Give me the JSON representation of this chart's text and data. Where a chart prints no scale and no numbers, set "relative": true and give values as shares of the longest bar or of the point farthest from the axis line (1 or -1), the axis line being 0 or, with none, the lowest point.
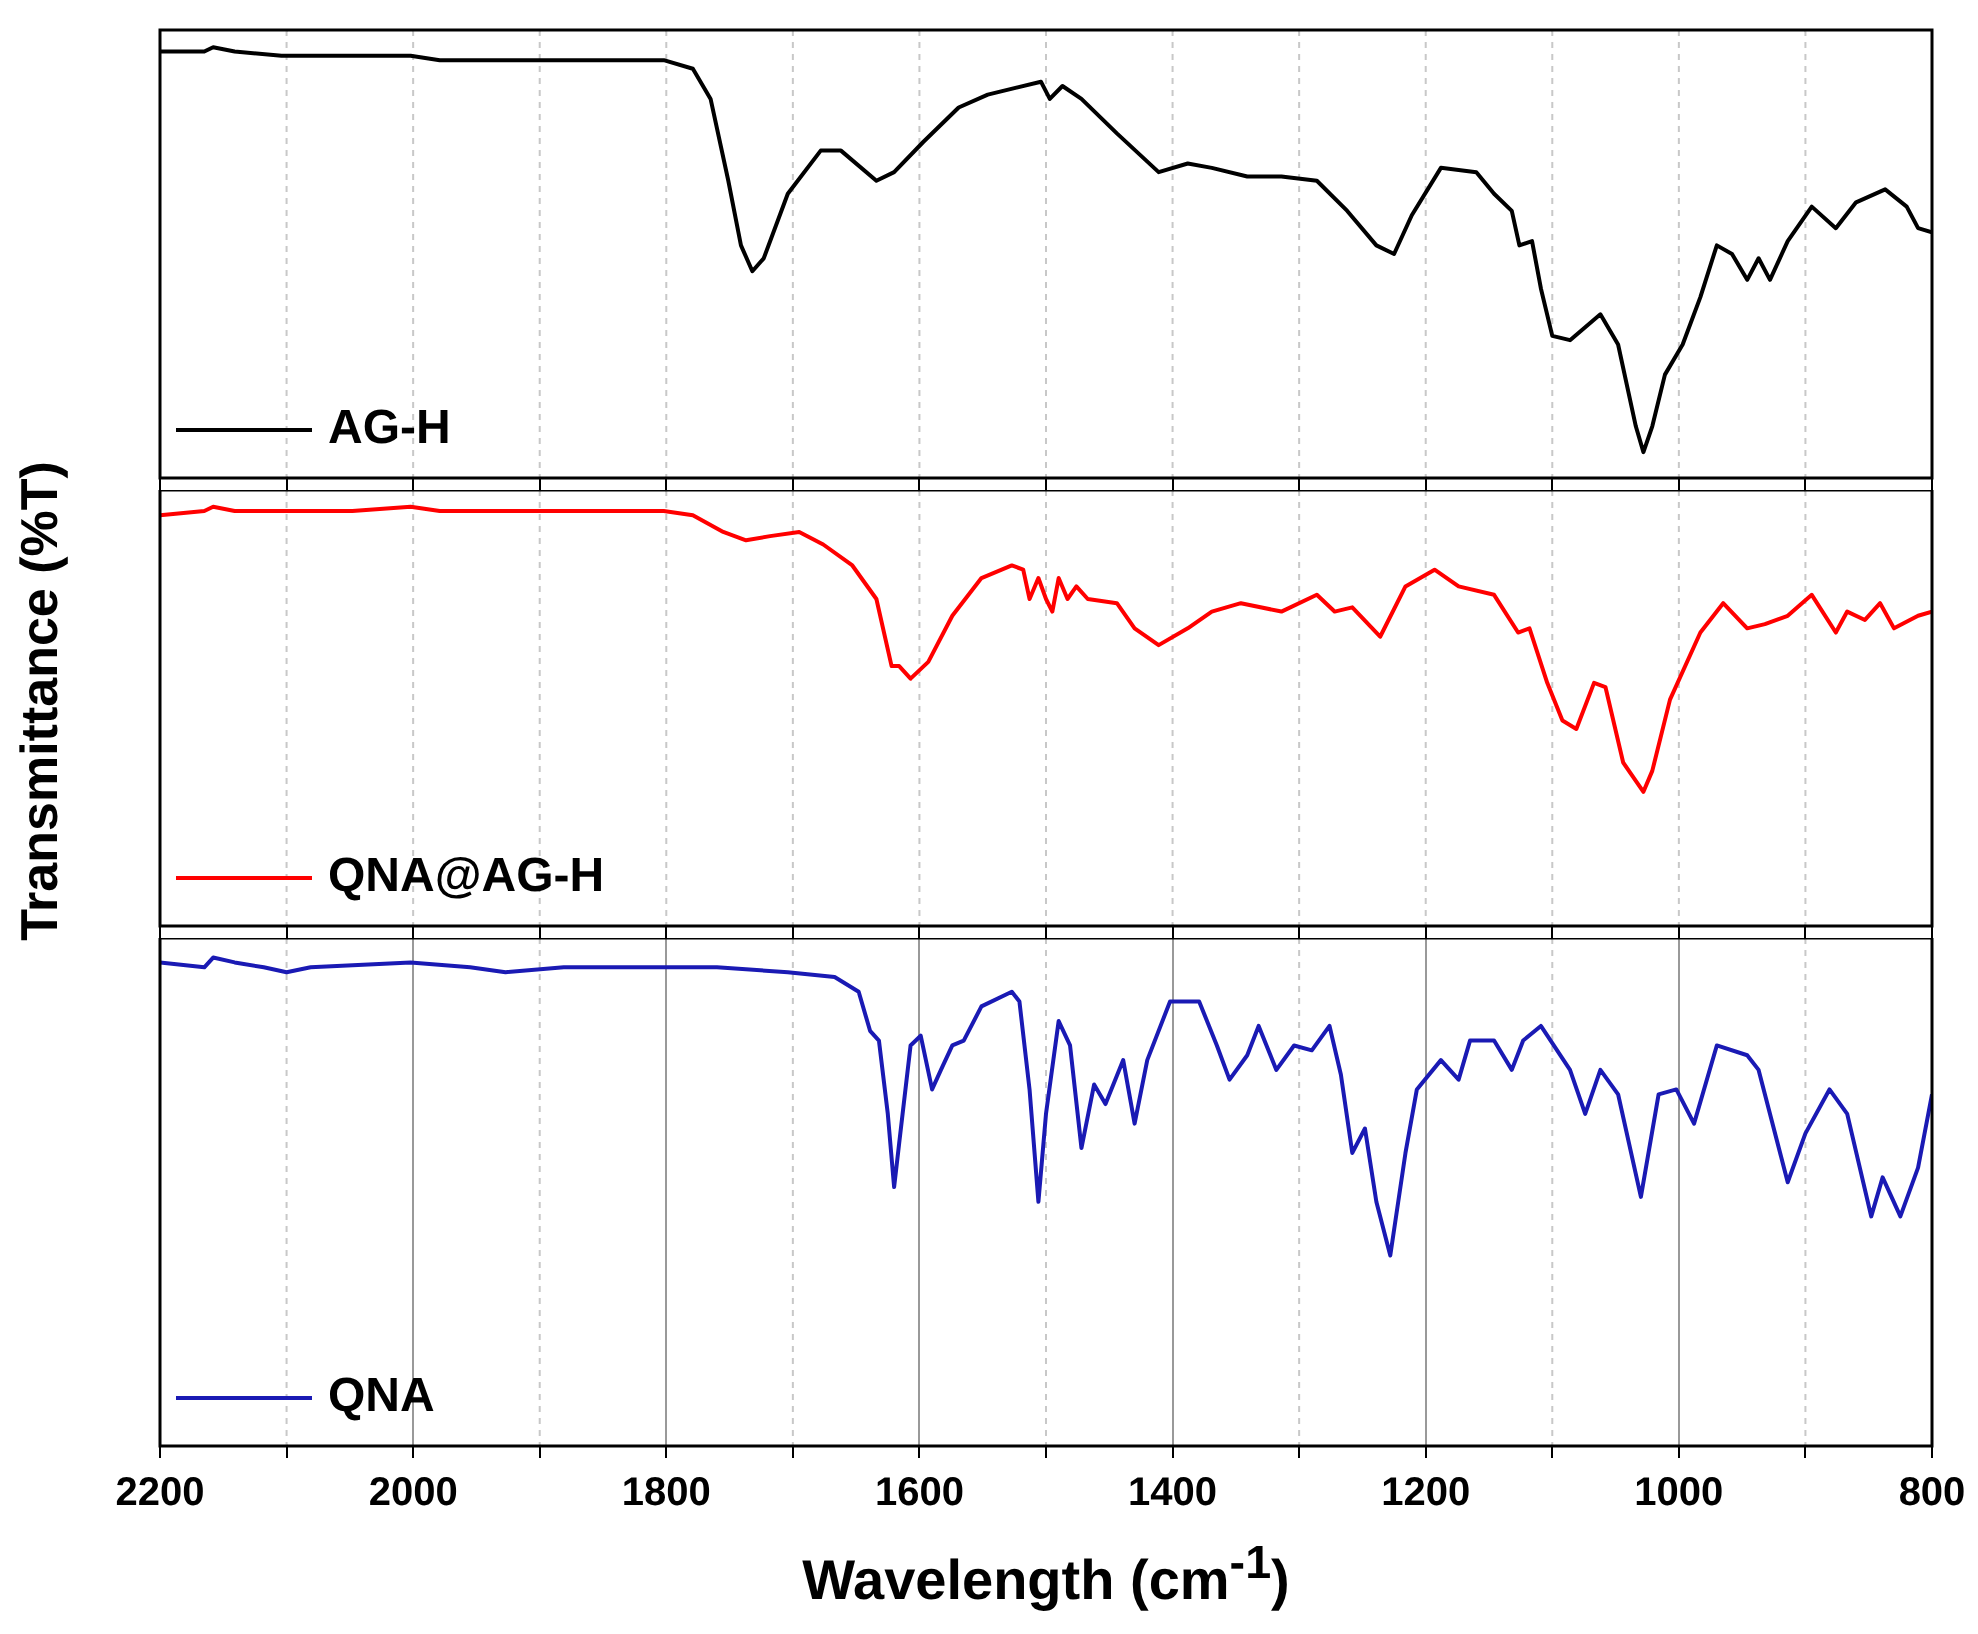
{
  "chart_data": [
    {
      "type": "line",
      "relative": true,
      "xlim": [
        2200,
        800
      ],
      "xticks": [
        {
          "value": 2200,
          "label": null
        },
        {
          "value": 2100,
          "label": null
        },
        {
          "value": 2000,
          "label": null
        },
        {
          "value": 1900,
          "label": null
        },
        {
          "value": 1800,
          "label": null
        },
        {
          "value": 1700,
          "label": null
        },
        {
          "value": 1600,
          "label": null
        },
        {
          "value": 1500,
          "label": null
        },
        {
          "value": 1400,
          "label": null
        },
        {
          "value": 1300,
          "label": null
        },
        {
          "value": 1200,
          "label": null
        },
        {
          "value": 1100,
          "label": null
        },
        {
          "value": 1000,
          "label": null
        },
        {
          "value": 900,
          "label": null
        },
        {
          "value": 800,
          "label": null
        }
      ],
      "tick_labels": false,
      "grid": "x",
      "legend": "bottom left",
      "x": [
        2200,
        2165,
        2158,
        2141,
        2104,
        2002,
        1979,
        1937,
        1862,
        1802,
        1779,
        1765,
        1751,
        1741,
        1732,
        1723,
        1704,
        1678,
        1662,
        1634,
        1620,
        1597,
        1569,
        1546,
        1504,
        1497,
        1487,
        1472,
        1444,
        1411,
        1388,
        1369,
        1341,
        1314,
        1286,
        1262,
        1239,
        1225,
        1211,
        1188,
        1160,
        1146,
        1132,
        1126,
        1116,
        1109,
        1100,
        1086,
        1062,
        1048,
        1034,
        1028,
        1021,
        1011,
        997,
        983,
        970,
        958,
        946,
        937,
        928,
        914,
        895,
        876,
        860,
        837,
        820,
        811,
        800
      ],
      "series": [
        {
          "name": "AG-H",
          "color": "#000000",
          "values": [
            0.99,
            0.99,
            1.0,
            0.99,
            0.98,
            0.98,
            0.97,
            0.97,
            0.97,
            0.97,
            0.95,
            0.88,
            0.69,
            0.54,
            0.48,
            0.51,
            0.66,
            0.76,
            0.76,
            0.69,
            0.71,
            0.78,
            0.86,
            0.89,
            0.92,
            0.88,
            0.91,
            0.88,
            0.8,
            0.71,
            0.73,
            0.72,
            0.7,
            0.7,
            0.69,
            0.62,
            0.54,
            0.52,
            0.61,
            0.72,
            0.71,
            0.66,
            0.62,
            0.54,
            0.55,
            0.44,
            0.33,
            0.32,
            0.38,
            0.31,
            0.12,
            0.06,
            0.12,
            0.24,
            0.31,
            0.42,
            0.54,
            0.52,
            0.46,
            0.51,
            0.46,
            0.55,
            0.63,
            0.58,
            0.64,
            0.67,
            0.63,
            0.58,
            0.57
          ]
        }
      ]
    },
    {
      "type": "line",
      "relative": true,
      "ylabel": "Transmittance (%T)",
      "xlim": [
        2200,
        800
      ],
      "xticks": [
        {
          "value": 2200,
          "label": null
        },
        {
          "value": 2100,
          "label": null
        },
        {
          "value": 2000,
          "label": null
        },
        {
          "value": 1900,
          "label": null
        },
        {
          "value": 1800,
          "label": null
        },
        {
          "value": 1700,
          "label": null
        },
        {
          "value": 1600,
          "label": null
        },
        {
          "value": 1500,
          "label": null
        },
        {
          "value": 1400,
          "label": null
        },
        {
          "value": 1300,
          "label": null
        },
        {
          "value": 1200,
          "label": null
        },
        {
          "value": 1100,
          "label": null
        },
        {
          "value": 1000,
          "label": null
        },
        {
          "value": 900,
          "label": null
        },
        {
          "value": 800,
          "label": null
        }
      ],
      "tick_labels": false,
      "grid": "x",
      "legend": "bottom left",
      "x": [
        2200,
        2165,
        2158,
        2141,
        2104,
        2048,
        2002,
        1979,
        1937,
        1862,
        1802,
        1779,
        1755,
        1737,
        1718,
        1695,
        1676,
        1653,
        1634,
        1622,
        1616,
        1607,
        1593,
        1574,
        1551,
        1527,
        1518,
        1513,
        1506,
        1500,
        1495,
        1490,
        1483,
        1476,
        1467,
        1444,
        1430,
        1411,
        1388,
        1369,
        1346,
        1314,
        1286,
        1272,
        1258,
        1236,
        1216,
        1193,
        1174,
        1146,
        1127,
        1118,
        1104,
        1092,
        1081,
        1067,
        1058,
        1044,
        1028,
        1021,
        1007,
        983,
        965,
        946,
        932,
        914,
        895,
        876,
        867,
        853,
        841,
        830,
        811,
        800
      ],
      "series": [
        {
          "name": "QNA@AG-H",
          "color": "#ff0000",
          "values": [
            0.98,
            0.99,
            1.0,
            0.99,
            0.99,
            0.99,
            1.0,
            0.99,
            0.99,
            0.99,
            0.99,
            0.98,
            0.94,
            0.92,
            0.93,
            0.94,
            0.91,
            0.86,
            0.78,
            0.62,
            0.62,
            0.59,
            0.63,
            0.74,
            0.83,
            0.86,
            0.85,
            0.78,
            0.83,
            0.78,
            0.75,
            0.83,
            0.78,
            0.81,
            0.78,
            0.77,
            0.71,
            0.67,
            0.71,
            0.75,
            0.77,
            0.75,
            0.79,
            0.75,
            0.76,
            0.69,
            0.81,
            0.85,
            0.81,
            0.79,
            0.7,
            0.71,
            0.58,
            0.49,
            0.47,
            0.58,
            0.57,
            0.39,
            0.32,
            0.37,
            0.54,
            0.7,
            0.77,
            0.71,
            0.72,
            0.74,
            0.79,
            0.7,
            0.75,
            0.73,
            0.77,
            0.71,
            0.74,
            0.75
          ]
        }
      ]
    },
    {
      "type": "line",
      "relative": true,
      "xlabel": "Wavelength (cm$^{-1}$)",
      "xlim": [
        2200,
        800
      ],
      "xticks": [
        2200,
        {
          "value": 2100,
          "label": null
        },
        2000,
        {
          "value": 1900,
          "label": null
        },
        1800,
        {
          "value": 1700,
          "label": null
        },
        1600,
        {
          "value": 1500,
          "label": null
        },
        1400,
        {
          "value": 1300,
          "label": null
        },
        1200,
        {
          "value": 1100,
          "label": null
        },
        1000,
        {
          "value": 900,
          "label": null
        },
        800
      ],
      "tick_labels": "x",
      "grid": "x",
      "legend": "bottom left",
      "x": [
        2200,
        2165,
        2158,
        2141,
        2118,
        2100,
        2081,
        2002,
        1955,
        1927,
        1881,
        1802,
        1760,
        1704,
        1667,
        1648,
        1639,
        1632,
        1625,
        1620,
        1616,
        1607,
        1599,
        1590,
        1583,
        1574,
        1565,
        1551,
        1527,
        1521,
        1513,
        1506,
        1500,
        1490,
        1481,
        1472,
        1462,
        1453,
        1439,
        1430,
        1420,
        1402,
        1379,
        1365,
        1355,
        1341,
        1332,
        1318,
        1304,
        1290,
        1276,
        1267,
        1258,
        1248,
        1239,
        1228,
        1216,
        1207,
        1188,
        1174,
        1165,
        1146,
        1132,
        1123,
        1109,
        1086,
        1074,
        1062,
        1048,
        1030,
        1016,
        1002,
        988,
        970,
        946,
        937,
        914,
        900,
        881,
        867,
        848,
        839,
        825,
        811,
        800
      ],
      "series": [
        {
          "name": "QNA",
          "color": "#1a1ab4",
          "values": [
            0.99,
            0.98,
            1.0,
            0.99,
            0.98,
            0.97,
            0.98,
            0.99,
            0.98,
            0.97,
            0.98,
            0.98,
            0.98,
            0.97,
            0.96,
            0.93,
            0.85,
            0.83,
            0.68,
            0.53,
            0.62,
            0.82,
            0.84,
            0.73,
            0.77,
            0.82,
            0.83,
            0.9,
            0.93,
            0.91,
            0.73,
            0.5,
            0.68,
            0.87,
            0.82,
            0.61,
            0.74,
            0.7,
            0.79,
            0.66,
            0.79,
            0.91,
            0.91,
            0.82,
            0.75,
            0.8,
            0.86,
            0.77,
            0.82,
            0.81,
            0.86,
            0.76,
            0.6,
            0.65,
            0.5,
            0.39,
            0.6,
            0.73,
            0.79,
            0.75,
            0.83,
            0.83,
            0.77,
            0.83,
            0.86,
            0.77,
            0.68,
            0.77,
            0.72,
            0.51,
            0.72,
            0.73,
            0.66,
            0.82,
            0.8,
            0.77,
            0.54,
            0.64,
            0.73,
            0.68,
            0.47,
            0.55,
            0.47,
            0.57,
            0.72
          ]
        }
      ]
    }
  ]
}
